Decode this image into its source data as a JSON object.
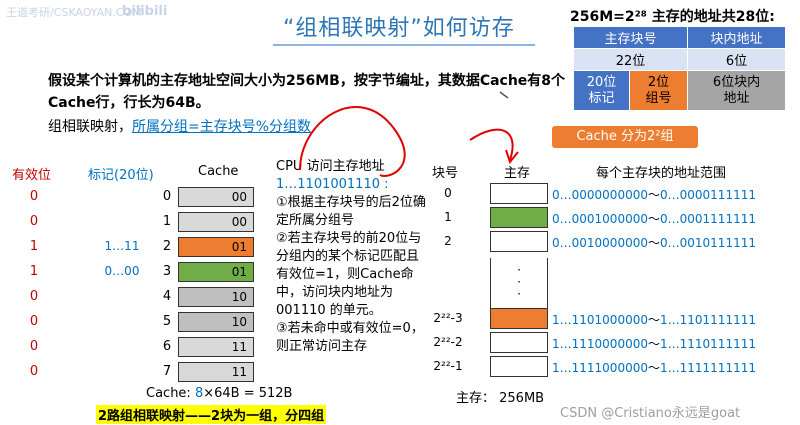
{
  "watermark": {
    "left_text": "王道考研/CSKAOYAN.COM",
    "bili": "bilibili",
    "csdn": "CSDN @Cristiano永远是goat"
  },
  "title": "“组相联映射”如何访存",
  "desc": "假设某个计算机的主存地址空间大小为256MB，按字节编址，其数据Cache有8个Cache行，行长为64B。",
  "rule_prefix": "组相联映射，",
  "rule_highlight": "所属分组=主存块号%分组数",
  "headers": {
    "valid": "有效位",
    "tag": "标记(20位)",
    "cache": "Cache",
    "block_no": "块号",
    "main_memory": "主存",
    "addr_range": "每个主存块的地址范围"
  },
  "cache_rows": [
    {
      "idx": "0",
      "valid": "0",
      "tag": "",
      "group": "00",
      "color": "#d9d9d9"
    },
    {
      "idx": "1",
      "valid": "0",
      "tag": "",
      "group": "00",
      "color": "#d9d9d9"
    },
    {
      "idx": "2",
      "valid": "1",
      "tag": "1…11",
      "group": "01",
      "color": "#ed7d31"
    },
    {
      "idx": "3",
      "valid": "1",
      "tag": "0…00",
      "group": "01",
      "color": "#70ad47"
    },
    {
      "idx": "4",
      "valid": "0",
      "tag": "",
      "group": "10",
      "color": "#bfbfbf"
    },
    {
      "idx": "5",
      "valid": "0",
      "tag": "",
      "group": "10",
      "color": "#bfbfbf"
    },
    {
      "idx": "6",
      "valid": "0",
      "tag": "",
      "group": "11",
      "color": "#d9d9d9"
    },
    {
      "idx": "7",
      "valid": "0",
      "tag": "",
      "group": "11",
      "color": "#d9d9d9"
    }
  ],
  "cache_foot": {
    "prefix": "Cache: ",
    "num": "8",
    "suffix": "×64B = 512B"
  },
  "two_way": "2路组相联映射——2块为一组，分四组",
  "cpu": {
    "line1": "CPU 访问主存地址",
    "addr": "1…1101001110 :",
    "s1": "①根据主存块号的后2位确定所属分组号",
    "s2": "②若主存块号的前20位与分组内的某个标记匹配且有效位=1，则Cache命中，访问块内地址为 001110 的单元。",
    "s3": "③若未命中或有效位=0，则正常访问主存"
  },
  "mem_rows": [
    {
      "idx": "0",
      "color": "#ffffff",
      "addr_a": "0…0000000000",
      "addr_b": "0…0000111111"
    },
    {
      "idx": "1",
      "color": "#70ad47",
      "addr_a": "0…0001000000",
      "addr_b": "0…0001111111"
    },
    {
      "idx": "2",
      "color": "#ffffff",
      "addr_a": "0…0010000000",
      "addr_b": "0…0010111111"
    },
    {
      "idx": "2²²-3",
      "color": "#ed7d31",
      "addr_a": "1…1101000000",
      "addr_b": "1…1101111111"
    },
    {
      "idx": "2²²-2",
      "color": "#ffffff",
      "addr_a": "1…1110000000",
      "addr_b": "1…1110111111"
    },
    {
      "idx": "2²²-1",
      "color": "#ffffff",
      "addr_a": "1…1111000000",
      "addr_b": "1…1111111111"
    }
  ],
  "mem_dots": "·\n·\n·",
  "mem_foot": "主存：  256MB",
  "addr_box": {
    "title": "256M=2²⁸ 主存的地址共28位:",
    "h1": "主存块号",
    "h2": "块内地址",
    "b1": "22位",
    "b2": "6位",
    "c1": "20位\n标记",
    "c2": "2位\n组号",
    "c3": "6位块内\n地址"
  },
  "cache_groups_btn": "Cache 分为2²组",
  "tilde": "～"
}
